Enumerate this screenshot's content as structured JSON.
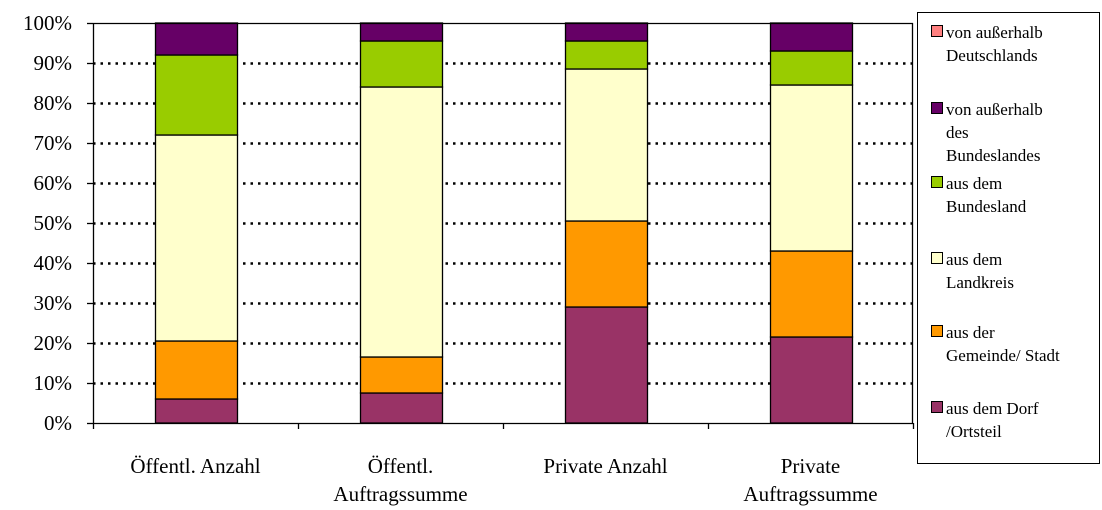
{
  "chart_data": {
    "type": "bar",
    "stacked": true,
    "normalized": true,
    "title": "",
    "xlabel": "",
    "ylabel": "",
    "categories": [
      "Öffentl. Anzahl",
      "Öffentl. Auftragssumme",
      "Private Anzahl",
      "Private Auftragssumme"
    ],
    "category_lines": [
      [
        "Öffentl. Anzahl"
      ],
      [
        "Öffentl.",
        "Auftragssumme"
      ],
      [
        "Private Anzahl"
      ],
      [
        "Private",
        "Auftragssumme"
      ]
    ],
    "ylim": [
      0,
      100
    ],
    "yticks": [
      0,
      10,
      20,
      30,
      40,
      50,
      60,
      70,
      80,
      90,
      100
    ],
    "ytick_labels": [
      "0%",
      "10%",
      "20%",
      "30%",
      "40%",
      "50%",
      "60%",
      "70%",
      "80%",
      "90%",
      "100%"
    ],
    "grid": "horizontal dotted",
    "legend_position": "right",
    "series": [
      {
        "name": "aus dem  Dorf /Ortsteil",
        "color": "#993366",
        "values": [
          6,
          7.5,
          29,
          21.5
        ]
      },
      {
        "name": "aus der Gemeinde/ Stadt",
        "color": "#ff9900",
        "values": [
          14.5,
          9,
          21.5,
          21.5
        ]
      },
      {
        "name": "aus dem Landkreis",
        "color": "#ffffcc",
        "values": [
          51.5,
          67.5,
          38,
          41.5
        ]
      },
      {
        "name": "aus dem Bundesland",
        "color": "#99cc00",
        "values": [
          20,
          11.5,
          7,
          8.5
        ]
      },
      {
        "name": "von außerhalb des Bundeslandes",
        "color": "#660066",
        "values": [
          8,
          4.5,
          4.5,
          7
        ]
      },
      {
        "name": "von außerhalb Deutschlands",
        "color": "#ff8080",
        "values": [
          0,
          0,
          0,
          0
        ]
      }
    ]
  },
  "legend": [
    {
      "label": "von außerhalb\nDeutschlands",
      "color": "#ff8080"
    },
    {
      "label": "von außerhalb\ndes\nBundeslandes",
      "color": "#660066"
    },
    {
      "label": "aus dem\nBundesland",
      "color": "#99cc00"
    },
    {
      "label": "aus dem\nLandkreis",
      "color": "#ffffcc"
    },
    {
      "label": "aus der\nGemeinde/ Stadt",
      "color": "#ff9900"
    },
    {
      "label": "aus dem  Dorf\n/Ortsteil",
      "color": "#993366"
    }
  ]
}
